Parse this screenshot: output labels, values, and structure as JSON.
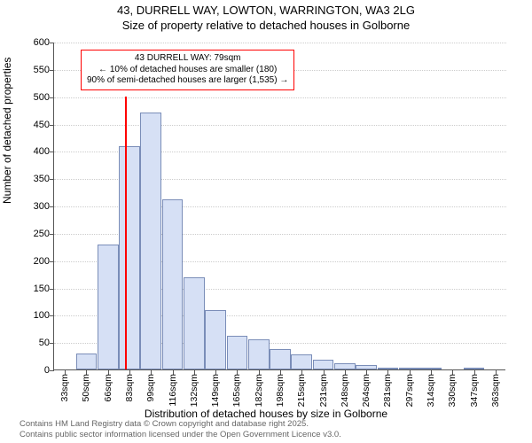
{
  "title": {
    "line1": "43, DURRELL WAY, LOWTON, WARRINGTON, WA3 2LG",
    "line2": "Size of property relative to detached houses in Golborne"
  },
  "chart": {
    "type": "histogram",
    "ylabel": "Number of detached properties",
    "xlabel": "Distribution of detached houses by size in Golborne",
    "ylim": [
      0,
      600
    ],
    "ytick_step": 50,
    "yticks": [
      0,
      50,
      100,
      150,
      200,
      250,
      300,
      350,
      400,
      450,
      500,
      550,
      600
    ],
    "xtick_labels": [
      "33sqm",
      "50sqm",
      "66sqm",
      "83sqm",
      "99sqm",
      "116sqm",
      "132sqm",
      "149sqm",
      "165sqm",
      "182sqm",
      "198sqm",
      "215sqm",
      "231sqm",
      "248sqm",
      "264sqm",
      "281sqm",
      "297sqm",
      "314sqm",
      "330sqm",
      "347sqm",
      "363sqm"
    ],
    "bars": [
      {
        "value": 0
      },
      {
        "value": 30
      },
      {
        "value": 228
      },
      {
        "value": 408
      },
      {
        "value": 470
      },
      {
        "value": 312
      },
      {
        "value": 168
      },
      {
        "value": 108
      },
      {
        "value": 62
      },
      {
        "value": 55
      },
      {
        "value": 38
      },
      {
        "value": 28
      },
      {
        "value": 18
      },
      {
        "value": 12
      },
      {
        "value": 8
      },
      {
        "value": 2
      },
      {
        "value": 3
      },
      {
        "value": 2
      },
      {
        "value": 0
      },
      {
        "value": 1
      },
      {
        "value": 0
      }
    ],
    "bar_fill": "#d6e0f5",
    "bar_border": "#7a8db8",
    "grid_color": "#cccccc",
    "background_color": "#ffffff",
    "marker": {
      "position_category_index": 2.8,
      "color": "#ff0000",
      "height_value": 500
    },
    "annotation": {
      "line1": "43 DURRELL WAY: 79sqm",
      "line2": "← 10% of detached houses are smaller (180)",
      "line3": "90% of semi-detached houses are larger (1,535) →",
      "border_color": "#ff0000"
    }
  },
  "footer": {
    "line1": "Contains HM Land Registry data © Crown copyright and database right 2025.",
    "line2": "Contains public sector information licensed under the Open Government Licence v3.0."
  }
}
